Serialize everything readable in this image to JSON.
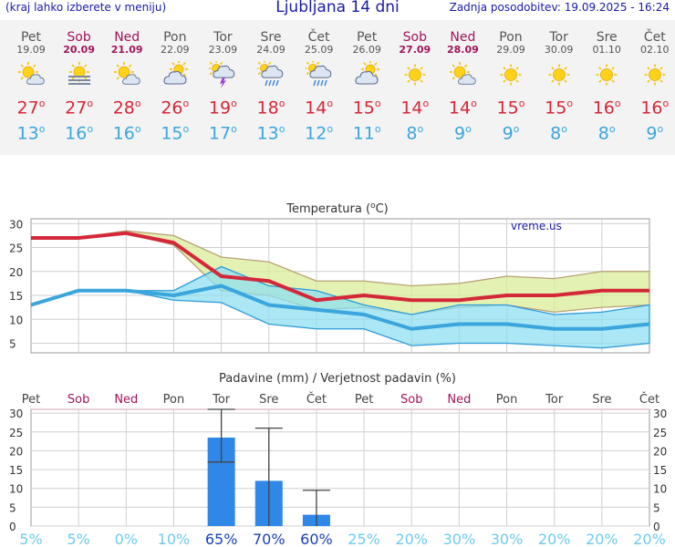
{
  "header": {
    "hint": "(kraj lahko izberete v meniju)",
    "title": "Ljubljana 14 dni",
    "updated": "Zadnja posodobitev: 19.09.2025 - 16:24"
  },
  "days": [
    {
      "name": "Pet",
      "date": "19.09",
      "weekend": false,
      "icon": "partly-cloudy-icon",
      "tmax": "27",
      "tmin": "13"
    },
    {
      "name": "Sob",
      "date": "20.09",
      "weekend": true,
      "icon": "sun-fog-icon",
      "tmax": "27",
      "tmin": "16"
    },
    {
      "name": "Ned",
      "date": "21.09",
      "weekend": true,
      "icon": "partly-cloudy-icon",
      "tmax": "28",
      "tmin": "16"
    },
    {
      "name": "Pon",
      "date": "22.09",
      "weekend": false,
      "icon": "cloudy-sun-icon",
      "tmax": "26",
      "tmin": "15"
    },
    {
      "name": "Tor",
      "date": "23.09",
      "weekend": false,
      "icon": "thunderstorm-icon",
      "tmax": "19",
      "tmin": "17"
    },
    {
      "name": "Sre",
      "date": "24.09",
      "weekend": false,
      "icon": "rain-icon",
      "tmax": "18",
      "tmin": "13"
    },
    {
      "name": "Čet",
      "date": "25.09",
      "weekend": false,
      "icon": "rain-icon",
      "tmax": "14",
      "tmin": "12"
    },
    {
      "name": "Pet",
      "date": "26.09",
      "weekend": false,
      "icon": "cloudy-sun-icon",
      "tmax": "15",
      "tmin": "11"
    },
    {
      "name": "Sob",
      "date": "27.09",
      "weekend": true,
      "icon": "sun-icon",
      "tmax": "14",
      "tmin": "8"
    },
    {
      "name": "Ned",
      "date": "28.09",
      "weekend": true,
      "icon": "partly-cloudy-icon",
      "tmax": "14",
      "tmin": "9"
    },
    {
      "name": "Pon",
      "date": "29.09",
      "weekend": false,
      "icon": "sun-icon",
      "tmax": "15",
      "tmin": "9"
    },
    {
      "name": "Tor",
      "date": "30.09",
      "weekend": false,
      "icon": "sun-icon",
      "tmax": "15",
      "tmin": "8"
    },
    {
      "name": "Sre",
      "date": "01.10",
      "weekend": false,
      "icon": "sun-icon",
      "tmax": "16",
      "tmin": "8"
    },
    {
      "name": "Čet",
      "date": "02.10",
      "weekend": false,
      "icon": "sun-icon",
      "tmax": "16",
      "tmin": "9"
    }
  ],
  "deg_symbol": "o",
  "colors": {
    "max_line": "#d4283a",
    "min_line": "#3aa6dd",
    "max_band": "#d9ee9a",
    "min_band": "#8fdff0",
    "overlap_band": "#7fd296",
    "precip_bar": "#2f87e8",
    "prob_text": "#6ecbf0",
    "prob_text_strong": "#1a3fb8",
    "weekend": "#a0155a",
    "watermark": "#1a1aa8"
  },
  "chart_data": [
    {
      "type": "line",
      "title": "Temperatura (°C)",
      "title_text": "Temperatura (",
      "title_unit": "C)",
      "watermark": "vreme.us",
      "x": [
        "19.09",
        "20.09",
        "21.09",
        "22.09",
        "23.09",
        "24.09",
        "25.09",
        "26.09",
        "27.09",
        "28.09",
        "29.09",
        "30.09",
        "01.10",
        "02.10"
      ],
      "ylim": [
        3,
        31
      ],
      "yticks": [
        5,
        10,
        15,
        20,
        25,
        30
      ],
      "series": [
        {
          "key": "max_line",
          "values": [
            27,
            27,
            28,
            26,
            19,
            18,
            14,
            15,
            14,
            14,
            15,
            15,
            16,
            16
          ]
        },
        {
          "key": "min_line",
          "values": [
            13,
            16,
            16,
            15,
            17,
            13,
            12,
            11,
            8,
            9,
            9,
            8,
            8,
            9
          ]
        },
        {
          "key": "max_band_upper",
          "values": [
            27,
            27,
            28.5,
            27.5,
            23,
            22,
            18,
            18,
            17,
            17.5,
            19,
            18.5,
            20,
            20
          ]
        },
        {
          "key": "max_band_lower",
          "values": [
            27,
            27,
            28,
            25.5,
            16,
            15,
            12,
            12.5,
            11,
            12.5,
            13,
            11.5,
            12.5,
            13
          ]
        },
        {
          "key": "min_band_upper",
          "values": [
            13,
            16,
            16,
            16,
            21,
            17,
            16,
            13,
            11,
            13,
            13,
            11,
            11.5,
            13
          ]
        },
        {
          "key": "min_band_lower",
          "values": [
            13,
            16,
            16,
            14,
            13.5,
            9,
            8,
            8,
            4.5,
            5,
            5,
            4.5,
            4,
            5
          ]
        }
      ],
      "grid": true
    },
    {
      "type": "bar",
      "title": "Padavine (mm) / Verjetnost padavin (%)",
      "categories": [
        "Pet",
        "Sob",
        "Ned",
        "Pon",
        "Tor",
        "Sre",
        "Čet",
        "Pet",
        "Sob",
        "Ned",
        "Pon",
        "Tor",
        "Sre",
        "Čet"
      ],
      "weekend": [
        false,
        true,
        true,
        false,
        false,
        false,
        false,
        false,
        true,
        true,
        false,
        false,
        false,
        false
      ],
      "values": [
        0,
        0,
        0,
        0,
        23.5,
        12,
        3,
        0,
        0,
        0,
        0,
        0,
        0,
        0
      ],
      "error_high": [
        0,
        0,
        0,
        0,
        31,
        26,
        9.5,
        0,
        0,
        0,
        0,
        0,
        0,
        0
      ],
      "error_low": [
        0,
        0,
        0,
        0,
        17,
        0,
        0,
        0,
        0,
        0,
        0,
        0,
        0,
        0
      ],
      "ylim": [
        0,
        31
      ],
      "yticks": [
        0,
        5,
        10,
        15,
        20,
        25,
        30
      ],
      "probability": [
        "5%",
        "5%",
        "0%",
        "10%",
        "65%",
        "70%",
        "60%",
        "25%",
        "20%",
        "30%",
        "30%",
        "20%",
        "20%",
        "20%"
      ],
      "probability_strong": [
        false,
        false,
        false,
        false,
        true,
        true,
        true,
        false,
        false,
        false,
        false,
        false,
        false,
        false
      ]
    }
  ]
}
